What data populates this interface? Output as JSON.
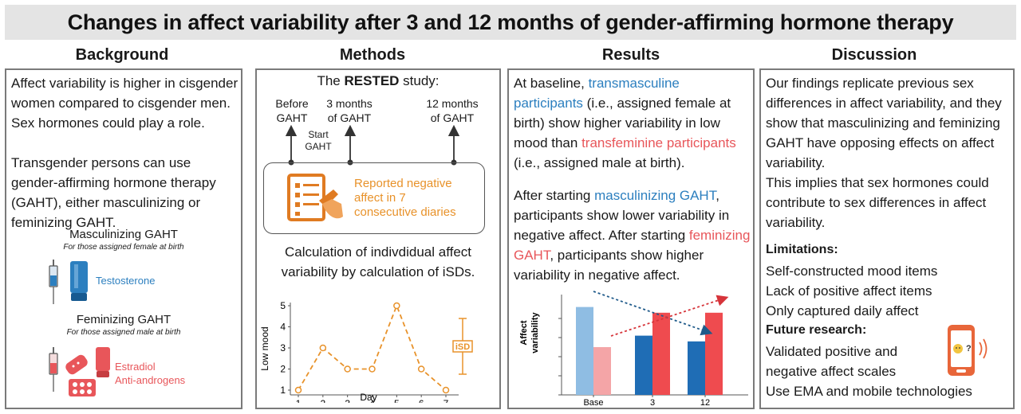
{
  "title": "Changes in affect variability after 3 and 12 months of gender-affirming hormone therapy",
  "background": {
    "heading": "Background",
    "para1": "Affect variability is higher in cisgender women compared to cisgender men. Sex hormones could play a role.",
    "para2": "Transgender persons can use gender-affirming hormone therapy (GAHT), either masculinizing or feminizing GAHT.",
    "masc_title": "Masculinizing GAHT",
    "masc_sub": "For those assigned female at birth",
    "masc_drug": "Testosterone",
    "fem_title": "Feminizing GAHT",
    "fem_sub": "For those assigned male at birth",
    "fem_drug1": "Estradiol",
    "fem_drug2": "Anti-androgens",
    "colors": {
      "blue": "#2c7fbf",
      "red": "#e8565a"
    }
  },
  "methods": {
    "heading": "Methods",
    "study_prefix": "The ",
    "study_name": "RESTED",
    "study_suffix": " study:",
    "tl_before_1": "Before",
    "tl_before_2": "GAHT",
    "tl_start_1": "Start",
    "tl_start_2": "GAHT",
    "tl_3m_1": "3 months",
    "tl_3m_2": "of GAHT",
    "tl_12m_1": "12 months",
    "tl_12m_2": "of GAHT",
    "diary_1": "Reported negative",
    "diary_2": "affect in 7",
    "diary_3": "consecutive diaries",
    "calc_1": "Calculation of indivdidual affect",
    "calc_2": "variability by calculation of iSDs.",
    "isd_label": "iSD",
    "icons": [
      "diary-icon",
      "arrow-up-icon"
    ]
  },
  "results": {
    "heading": "Results",
    "p1_a": "At baseline, ",
    "p1_b": "transmasculine participants",
    "p1_c": " (i.e., assigned female at birth) show higher variability in low mood than ",
    "p1_d": "transfeminine participants",
    "p1_e": " (i.e., assigned male at birth).",
    "p2_a": "After starting ",
    "p2_b": "masculinizing GAHT",
    "p2_c": ", participants show lower variability in negative affect. After starting ",
    "p2_d": "feminizing GAHT",
    "p2_e": ", participants show higher variability in negative affect."
  },
  "discussion": {
    "heading": "Discussion",
    "p1": "Our findings replicate previous sex differences in affect variability, and they show that masculinizing and feminizing GAHT have opposing effects on affect variability.",
    "p2": "This implies that sex hormones could contribute to sex differences in affect variability.",
    "lim_head": "Limitations:",
    "lim": [
      "Self-constructed mood items",
      "Lack of positive affect items",
      "Only captured daily affect"
    ],
    "fut_head": "Future research:",
    "fut1_a": "Validated positive and",
    "fut1_b": "negative affect scales",
    "fut2": "Use EMA and mobile technologies",
    "icons": [
      "mobile-phone-icon"
    ]
  },
  "chart_data": [
    {
      "type": "line",
      "xlabel": "Day",
      "ylabel": "Low mood",
      "categories": [
        1,
        2,
        3,
        4,
        5,
        6,
        7
      ],
      "values": [
        1,
        3,
        2,
        2,
        5,
        2,
        1
      ],
      "xlim": [
        1,
        7
      ],
      "ylim": [
        1,
        5
      ],
      "y_ticks": [
        1,
        2,
        3,
        4,
        5
      ],
      "color": "#e8922a",
      "grid": false
    },
    {
      "type": "bar",
      "ylabel": "Affect variability",
      "categories": [
        "Base",
        "3",
        "12"
      ],
      "series": [
        {
          "values": [
            4.6,
            3.1,
            2.8
          ],
          "colors": [
            "#8fbde3",
            "#1f6db5",
            "#1f6db5"
          ]
        },
        {
          "values": [
            2.5,
            4.3,
            4.3
          ],
          "colors": [
            "#f4a5a7",
            "#ef4b4f",
            "#ef4b4f"
          ]
        }
      ],
      "ylim": [
        0,
        5
      ],
      "legend": "none",
      "grid": false
    }
  ]
}
